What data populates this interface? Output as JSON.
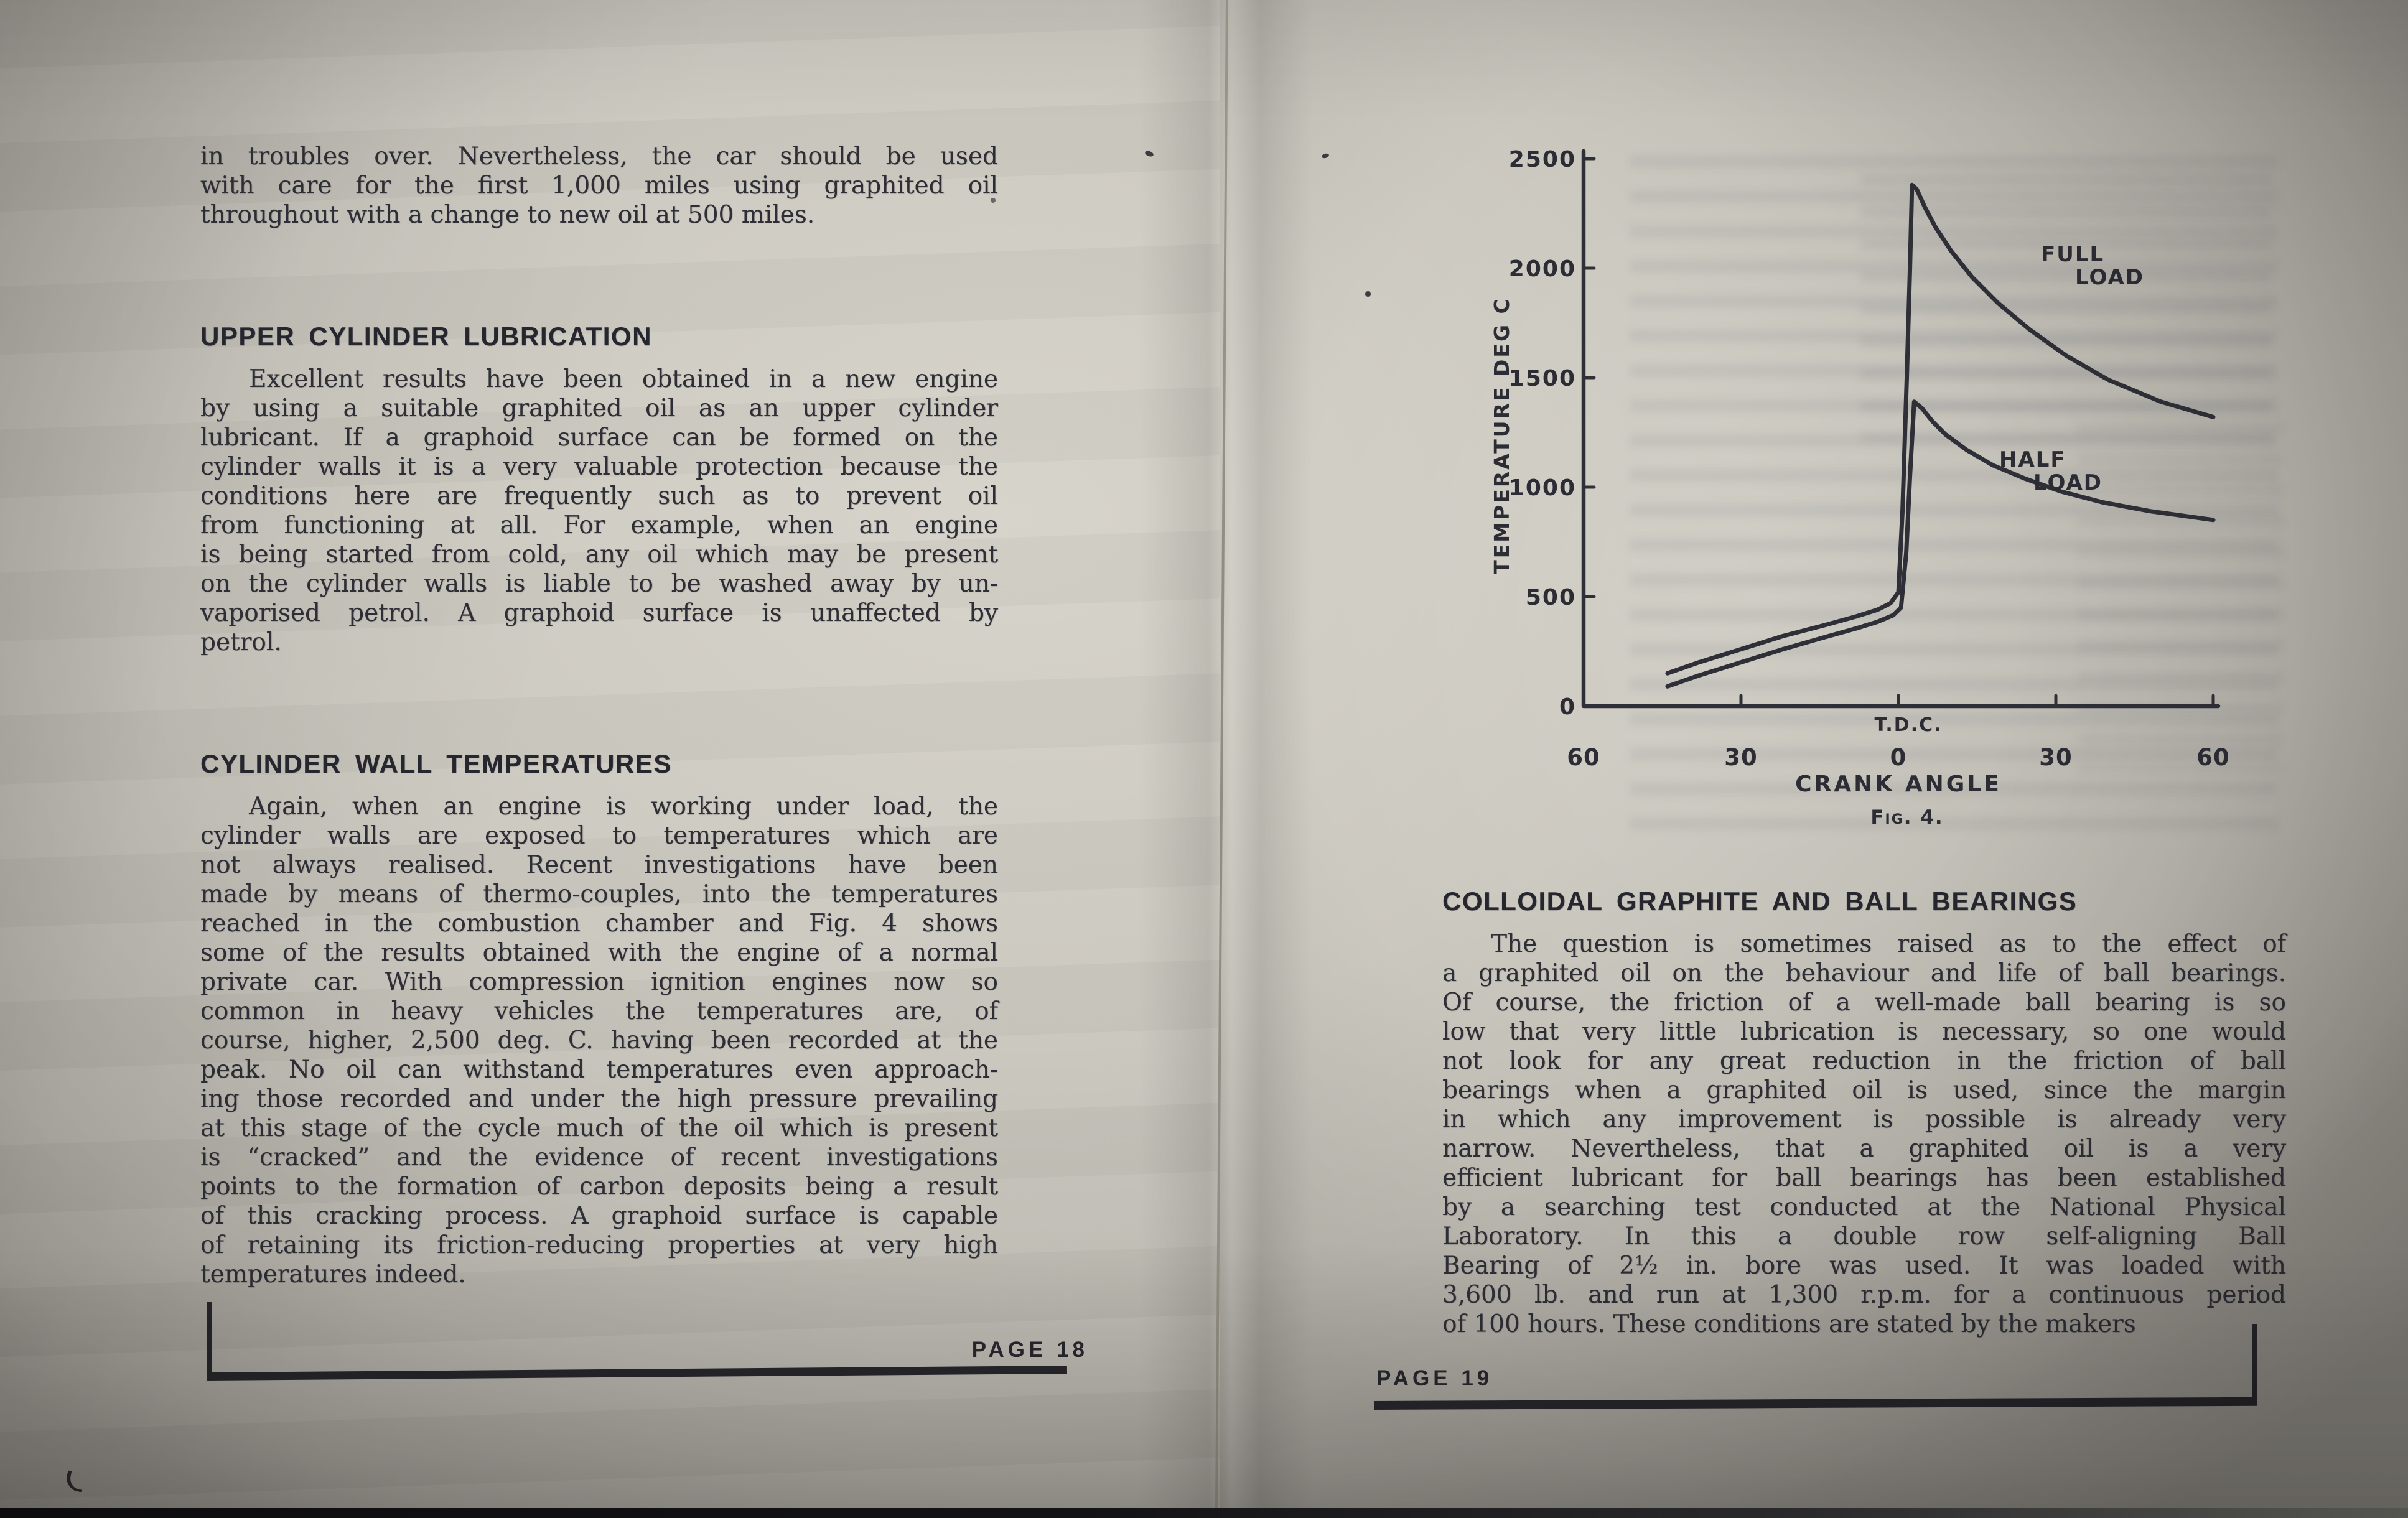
{
  "photo": {
    "paper_color": "#c9c6bd",
    "ink_color": "#2e2e36",
    "background_color": "#141416"
  },
  "left_page": {
    "footer_label": "PAGE 18",
    "blocks": [
      {
        "indent_first": false,
        "lines": [
          "in troubles over. Nevertheless, the car should be used",
          "with care for the first 1,000 miles using graphited oil",
          "throughout with a change to new oil at 500 miles."
        ]
      },
      {
        "heading": "UPPER CYLINDER LUBRICATION"
      },
      {
        "indent_first": true,
        "lines": [
          "Excellent results have been obtained in a new engine",
          "by using a suitable graphited oil as an upper cylinder",
          "lubricant. If a graphoid surface can be formed on the",
          "cylinder walls it is a very valuable protection because the",
          "conditions here are frequently such as to prevent oil",
          "from functioning at all. For example, when an engine",
          "is being started from cold, any oil which may be present",
          "on the cylinder walls is liable to be washed away by un-",
          "vaporised petrol. A graphoid surface is unaffected by",
          "petrol."
        ]
      },
      {
        "heading": "CYLINDER WALL TEMPERATURES"
      },
      {
        "indent_first": true,
        "lines": [
          "Again, when an engine is working under load, the",
          "cylinder walls are exposed to temperatures which are",
          "not always realised. Recent investigations have been",
          "made by means of thermo-couples, into the temperatures",
          "reached in the combustion chamber and Fig. 4 shows",
          "some of the results obtained with the engine of a normal",
          "private car. With compression ignition engines now so",
          "common in heavy vehicles the temperatures are, of",
          "course, higher, 2,500 deg. C. having been recorded at the",
          "peak. No oil can withstand temperatures even approach-",
          "ing those recorded and under the high pressure prevailing",
          "at this stage of the cycle much of the oil which is present",
          "is “cracked” and the evidence of recent investigations",
          "points to the formation of carbon deposits being a result",
          "of this cracking process. A graphoid surface is capable",
          "of retaining its friction-reducing properties at very high",
          "temperatures indeed."
        ]
      }
    ]
  },
  "right_page": {
    "footer_label": "PAGE 19",
    "blocks": [
      {
        "heading": "COLLOIDAL GRAPHITE AND BALL BEARINGS"
      },
      {
        "indent_first": true,
        "lines": [
          "The question is sometimes raised as to the effect of",
          "a graphited oil on the behaviour and life of ball bearings.",
          "Of course, the friction of a well-made ball bearing is so",
          "low that very little lubrication is necessary, so one would",
          "not look for any great reduction in the friction of ball",
          "bearings when a graphited oil is used, since the margin",
          "in which any improvement is possible is already very",
          "narrow. Nevertheless, that a graphited oil is a very",
          "efficient lubricant for ball bearings has been established",
          "by a searching test conducted at the National Physical",
          "Laboratory. In this a double row self-aligning Ball",
          "Bearing of 2½ in. bore was used. It was loaded with",
          "3,600 lb. and run at 1,300 r.p.m. for a continuous period",
          "of 100 hours. These conditions are stated by the makers"
        ]
      }
    ]
  },
  "chart_data": {
    "type": "line",
    "title": "",
    "xlabel": "CRANK ANGLE",
    "ylabel": "TEMPERATURE DEG C",
    "origin_note": "T.D.C.",
    "caption": "Fig. 4.",
    "xlim": [
      -60,
      60
    ],
    "ylim": [
      0,
      2500
    ],
    "grid": false,
    "legend_position": "on-curve-labels",
    "x_ticks": [
      {
        "v": -60,
        "label": "60"
      },
      {
        "v": -30,
        "label": "30"
      },
      {
        "v": 0,
        "label": "0"
      },
      {
        "v": 30,
        "label": "30"
      },
      {
        "v": 60,
        "label": "60"
      }
    ],
    "y_ticks": [
      {
        "v": 2500,
        "label": "2500"
      },
      {
        "v": 2000,
        "label": "2000"
      },
      {
        "v": 1500,
        "label": "1500"
      },
      {
        "v": 1000,
        "label": "1000"
      },
      {
        "v": 500,
        "label": "500"
      },
      {
        "v": 0,
        "label": "0"
      }
    ],
    "series": [
      {
        "name": "FULL LOAD",
        "label_lines": [
          "FULL",
          "LOAD"
        ],
        "label_pos": [
          930,
          190
        ],
        "points": [
          [
            -44,
            150
          ],
          [
            -38,
            200
          ],
          [
            -30,
            260
          ],
          [
            -22,
            320
          ],
          [
            -14,
            370
          ],
          [
            -8,
            410
          ],
          [
            -4,
            440
          ],
          [
            -1.5,
            470
          ],
          [
            0,
            520
          ],
          [
            0.8,
            900
          ],
          [
            1.6,
            1500
          ],
          [
            2.2,
            2000
          ],
          [
            2.6,
            2380
          ],
          [
            3.5,
            2360
          ],
          [
            5,
            2280
          ],
          [
            7,
            2190
          ],
          [
            10,
            2080
          ],
          [
            14,
            1960
          ],
          [
            19,
            1840
          ],
          [
            25,
            1720
          ],
          [
            32,
            1600
          ],
          [
            40,
            1490
          ],
          [
            50,
            1390
          ],
          [
            60,
            1320
          ]
        ]
      },
      {
        "name": "HALF LOAD",
        "label_lines": [
          "HALF",
          "LOAD"
        ],
        "label_pos": [
          863,
          520
        ],
        "points": [
          [
            -44,
            90
          ],
          [
            -38,
            140
          ],
          [
            -30,
            200
          ],
          [
            -22,
            260
          ],
          [
            -14,
            315
          ],
          [
            -8,
            355
          ],
          [
            -4,
            385
          ],
          [
            -1,
            415
          ],
          [
            0.5,
            450
          ],
          [
            1.5,
            700
          ],
          [
            2.2,
            1050
          ],
          [
            3,
            1390
          ],
          [
            4.5,
            1360
          ],
          [
            6.5,
            1300
          ],
          [
            9,
            1240
          ],
          [
            13,
            1170
          ],
          [
            18,
            1100
          ],
          [
            24,
            1040
          ],
          [
            31,
            980
          ],
          [
            39,
            930
          ],
          [
            48,
            890
          ],
          [
            60,
            850
          ]
        ]
      }
    ]
  }
}
